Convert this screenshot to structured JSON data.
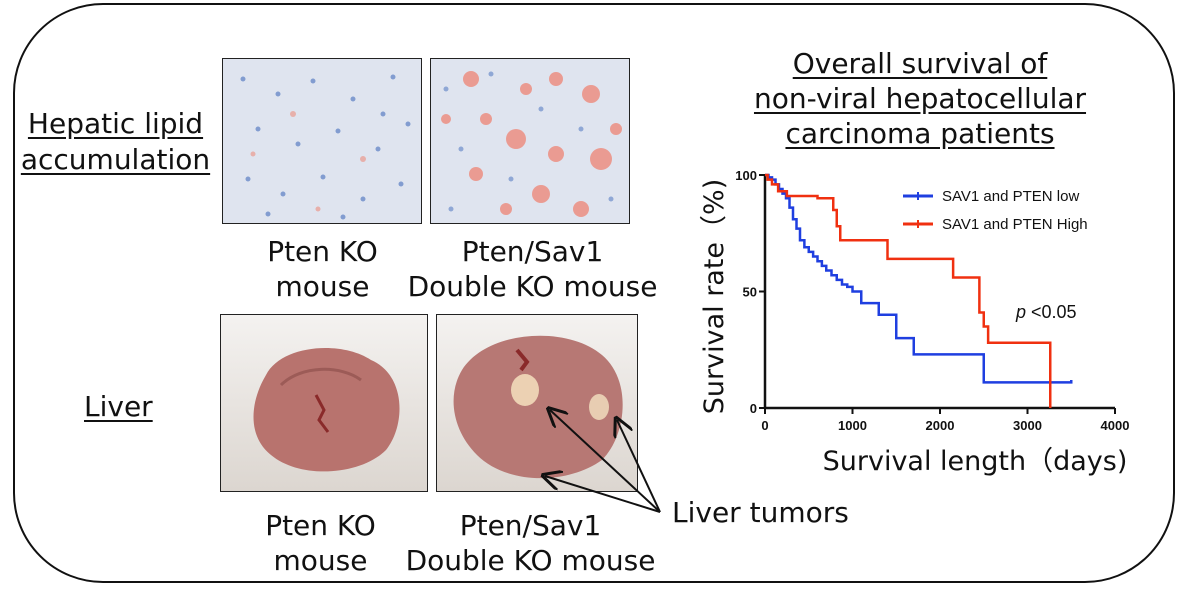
{
  "left": {
    "lipid_title_line1": "Hepatic lipid",
    "lipid_title_line2": "accumulation",
    "liver_title": "Liver",
    "caption1_line1": "Pten KO",
    "caption1_line2": "mouse",
    "caption2_line1": "Pten/Sav1",
    "caption2_line2": "Double KO mouse",
    "caption3_line1": "Pten KO",
    "caption3_line2": "mouse",
    "caption4_line1": "Pten/Sav1",
    "caption4_line2": "Double KO mouse",
    "tumor_label": "Liver tumors"
  },
  "chart_data": {
    "type": "line",
    "title": "Overall survival of\nnon-viral hepatocellular\ncarcinoma patients",
    "title_lines": [
      "Overall survival of",
      "non-viral hepatocellular",
      "carcinoma patients"
    ],
    "xlabel": "Survival length（days)",
    "ylabel": "Survival rate（%)",
    "xlim": [
      0,
      4000
    ],
    "ylim": [
      0,
      100
    ],
    "xticks": [
      0,
      1000,
      2000,
      3000,
      4000
    ],
    "yticks": [
      0,
      50,
      100
    ],
    "annotation_p": "p",
    "annotation_rest": " <0.05",
    "legend_position": "top-right",
    "series": [
      {
        "name": "SAV1 and PTEN low",
        "color": "#1f3fe0",
        "x": [
          0,
          40,
          80,
          120,
          160,
          200,
          240,
          280,
          320,
          360,
          400,
          450,
          500,
          550,
          600,
          650,
          700,
          760,
          820,
          880,
          940,
          1000,
          1100,
          1300,
          1500,
          1700,
          2450,
          2500,
          3500
        ],
        "y": [
          100,
          99,
          98,
          96,
          94,
          92,
          90,
          86,
          81,
          77,
          72,
          69,
          67,
          65,
          63,
          61,
          59,
          57,
          55,
          53,
          52,
          50,
          45,
          40,
          30,
          23,
          23,
          11,
          12
        ]
      },
      {
        "name": "SAV1 and PTEN High",
        "color": "#f03010",
        "x": [
          0,
          30,
          80,
          150,
          250,
          600,
          780,
          820,
          860,
          1400,
          2150,
          2450,
          2500,
          2550,
          3250,
          3260
        ],
        "y": [
          100,
          98,
          96,
          93,
          91,
          90,
          85,
          78,
          72,
          64,
          56,
          41,
          35,
          28,
          28,
          0
        ]
      }
    ]
  }
}
